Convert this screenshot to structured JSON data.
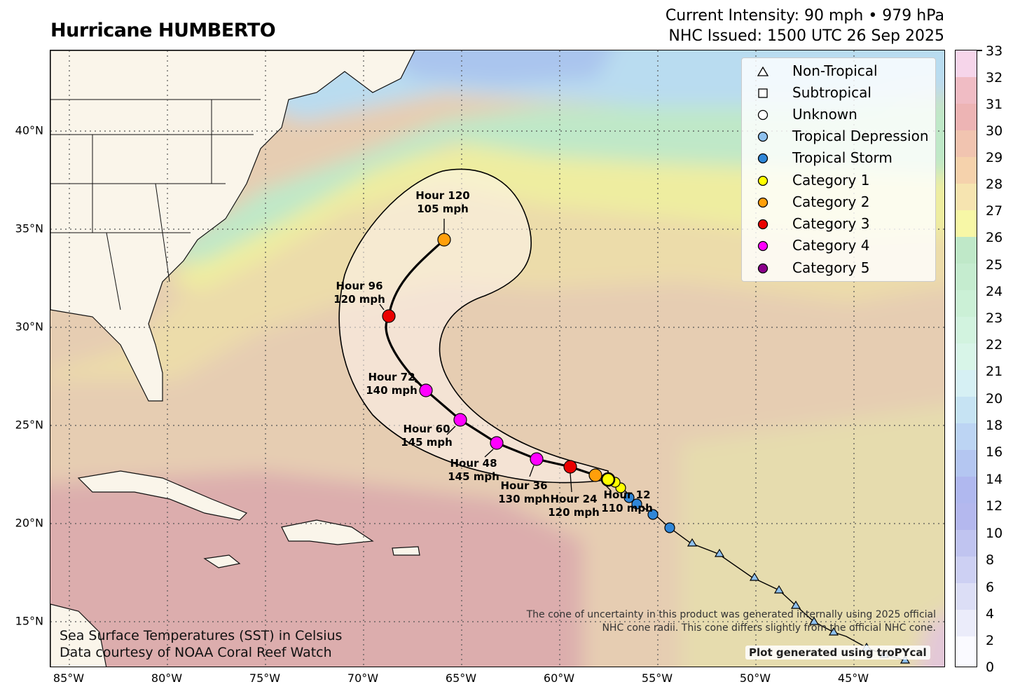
{
  "header": {
    "title": "Hurricane HUMBERTO",
    "intensity": "Current Intensity: 90 mph • 979 hPa",
    "issued": "NHC Issued: 1500 UTC 26 Sep 2025"
  },
  "axes": {
    "lat_labels": [
      "40°N",
      "35°N",
      "30°N",
      "25°N",
      "20°N",
      "15°N"
    ],
    "lon_labels": [
      "85°W",
      "80°W",
      "75°W",
      "70°W",
      "65°W",
      "60°W",
      "55°W",
      "50°W",
      "45°W"
    ]
  },
  "colorbar": {
    "ticks": [
      "33",
      "32",
      "31",
      "30",
      "29",
      "28",
      "27",
      "26",
      "25",
      "24",
      "23",
      "22",
      "21",
      "20",
      "18",
      "16",
      "14",
      "12",
      "10",
      "8",
      "6",
      "4",
      "2",
      "0"
    ]
  },
  "legend": {
    "items": [
      {
        "label": "Non-Tropical",
        "symbol": "triangle",
        "color": "#ffffff"
      },
      {
        "label": "Subtropical",
        "symbol": "square",
        "color": "#ffffff"
      },
      {
        "label": "Unknown",
        "symbol": "circle",
        "color": "#ffffff"
      },
      {
        "label": "Tropical Depression",
        "symbol": "circle",
        "color": "#8ec0ee"
      },
      {
        "label": "Tropical Storm",
        "symbol": "circle",
        "color": "#2f86d8"
      },
      {
        "label": "Category 1",
        "symbol": "circle",
        "color": "#ffff00"
      },
      {
        "label": "Category 2",
        "symbol": "circle",
        "color": "#ff9f0a"
      },
      {
        "label": "Category 3",
        "symbol": "circle",
        "color": "#ea0000"
      },
      {
        "label": "Category 4",
        "symbol": "circle",
        "color": "#ff00ff"
      },
      {
        "label": "Category 5",
        "symbol": "circle",
        "color": "#8b008b"
      }
    ]
  },
  "forecast": {
    "labels": [
      {
        "hour": "Hour 12",
        "wind": "110 mph"
      },
      {
        "hour": "Hour 24",
        "wind": "120 mph"
      },
      {
        "hour": "Hour 36",
        "wind": "130 mph"
      },
      {
        "hour": "Hour 48",
        "wind": "145 mph"
      },
      {
        "hour": "Hour 60",
        "wind": "145 mph"
      },
      {
        "hour": "Hour 72",
        "wind": "140 mph"
      },
      {
        "hour": "Hour 96",
        "wind": "120 mph"
      },
      {
        "hour": "Hour 120",
        "wind": "105 mph"
      }
    ]
  },
  "footer": {
    "sst_line1": "Sea Surface Temperatures (SST) in Celsius",
    "sst_line2": "Data courtesy of NOAA Coral Reef Watch",
    "cone_line1": "The cone of uncertainty in this product was generated internally using 2025 official",
    "cone_line2": "NHC cone radii. This cone differs slightly from the official NHC cone.",
    "credit": "Plot generated using troPYcal"
  }
}
